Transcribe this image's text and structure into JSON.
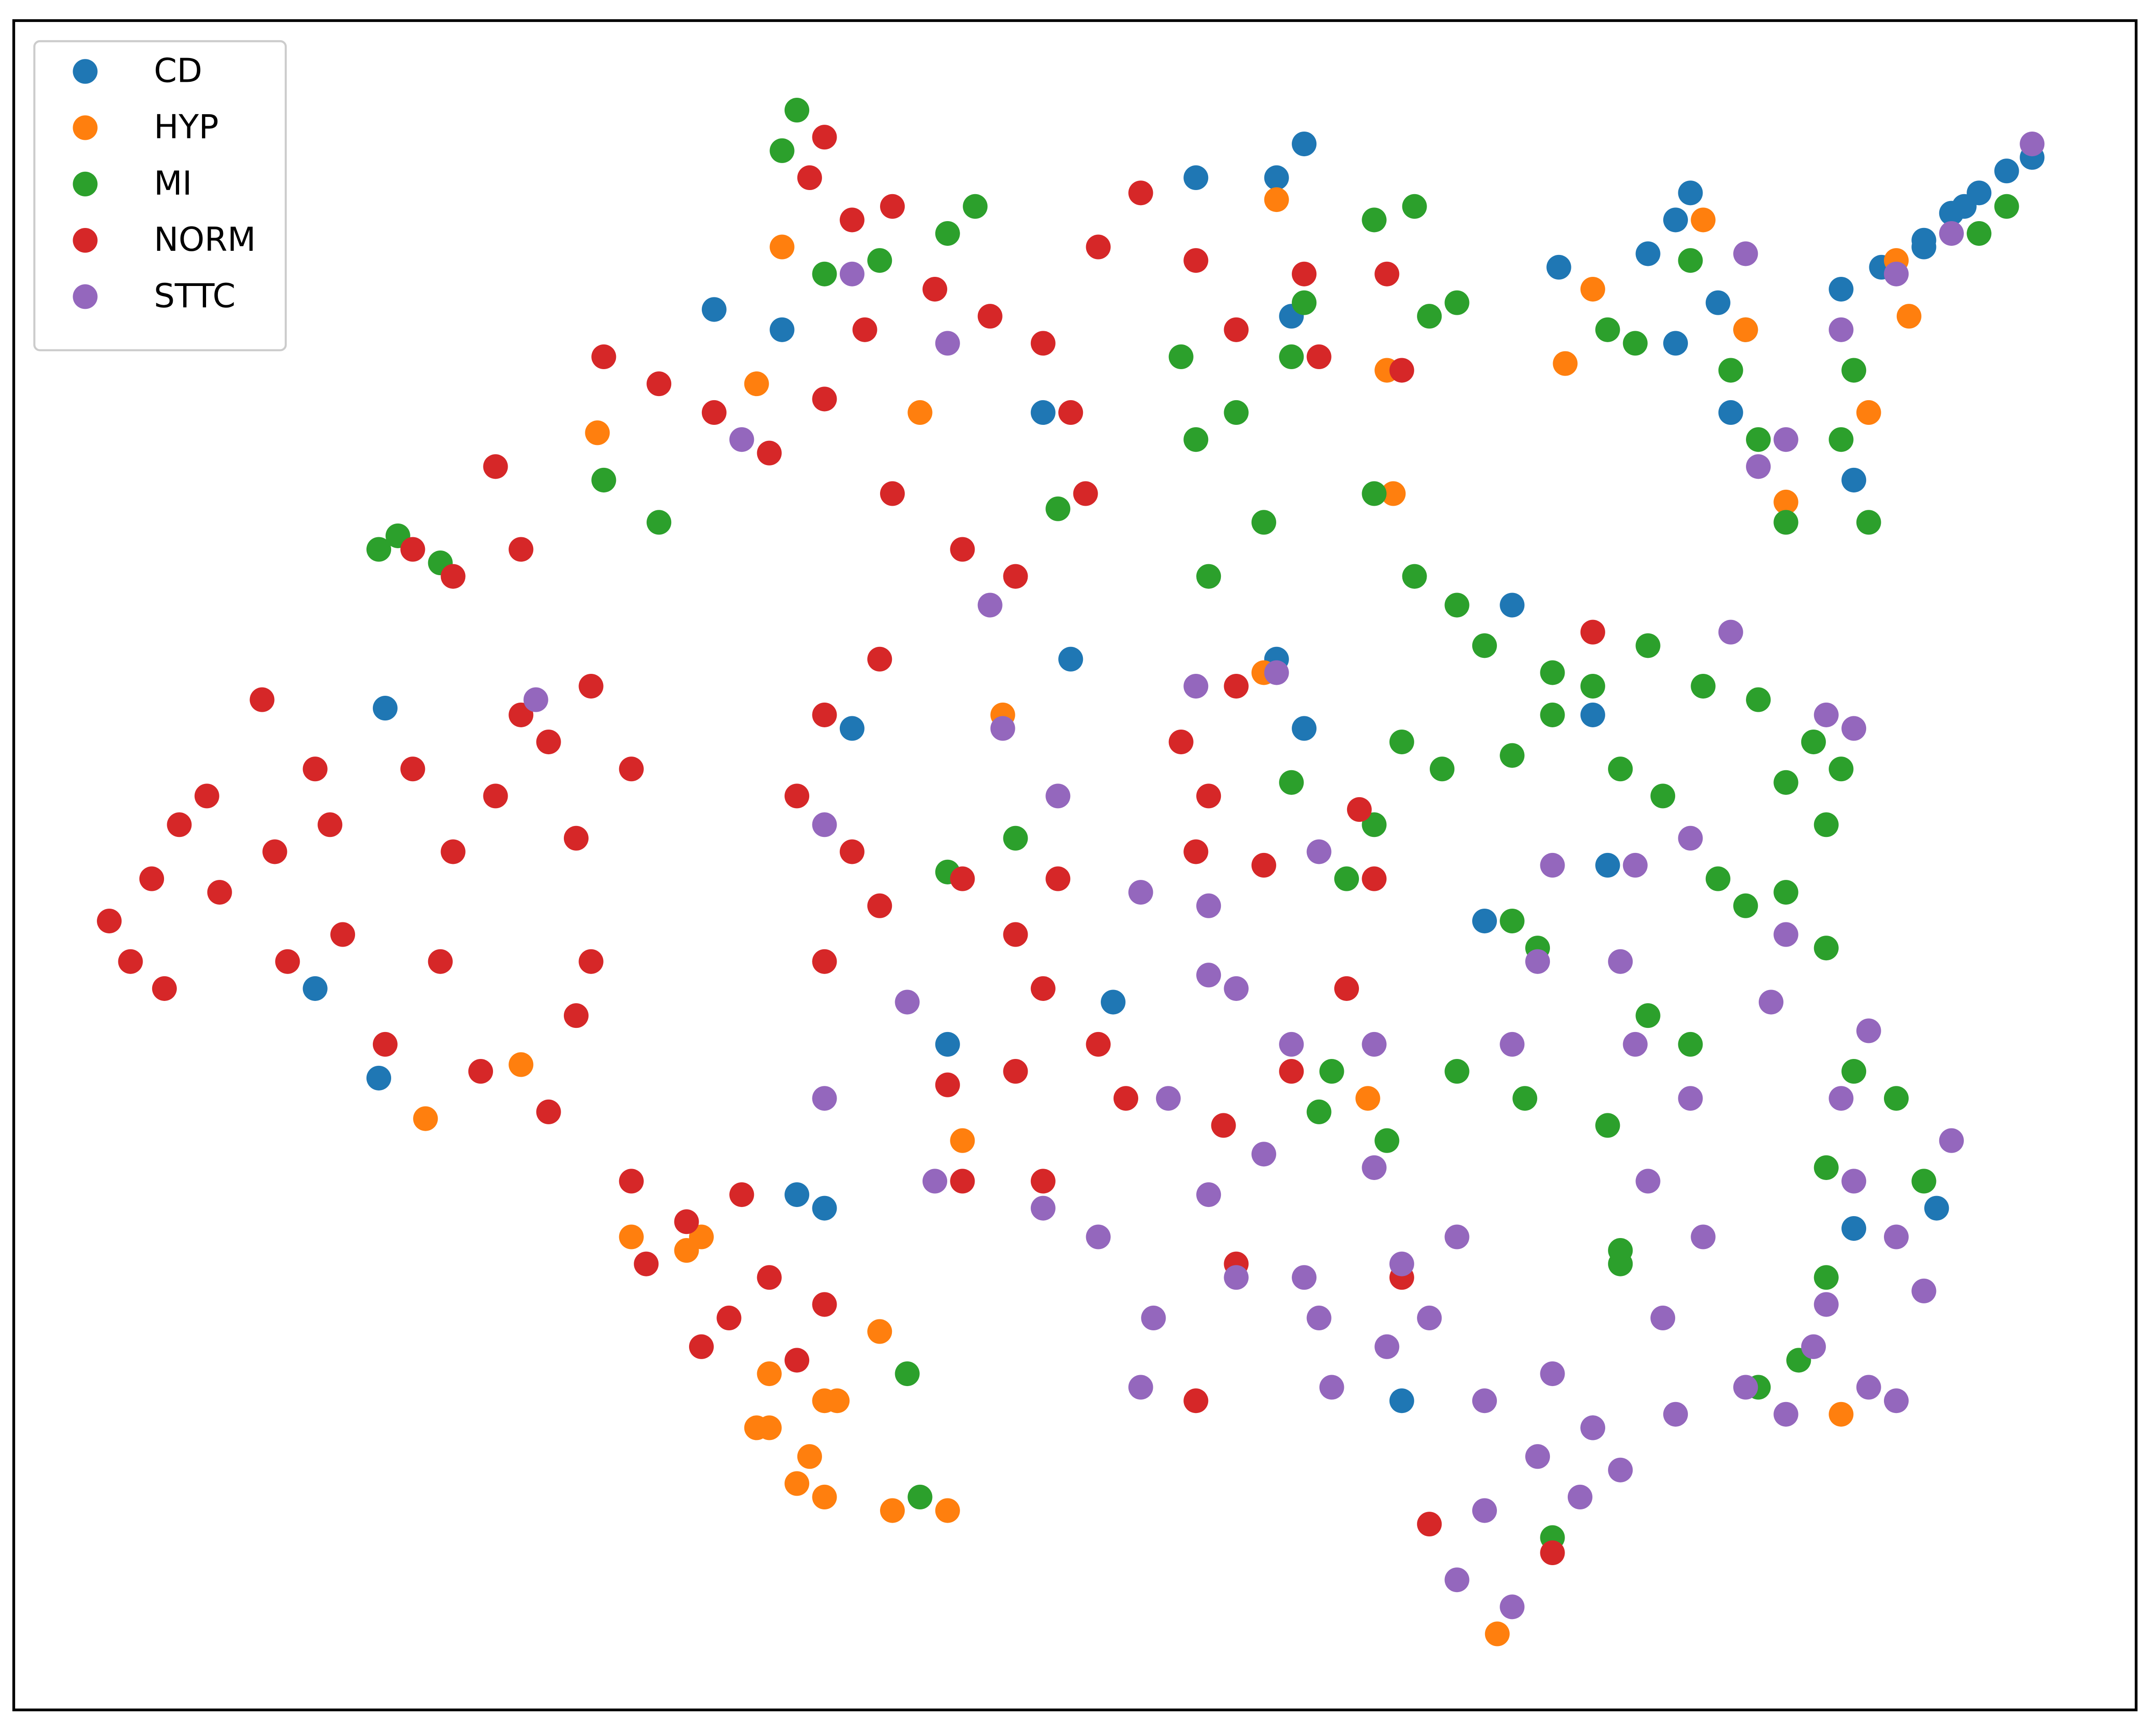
{
  "chart_data": {
    "type": "scatter",
    "legend": "upper left",
    "xlim": [
      0,
      100
    ],
    "ylim": [
      0,
      100
    ],
    "series": [
      {
        "name": "CD",
        "color": "#1f77b4",
        "x": [
          86.1,
          88.0,
          90.0,
          91.3,
          92.6,
          93.9,
          95.1,
          90.0,
          91.9,
          79.0,
          78.3,
          77.0,
          72.8,
          80.3,
          80.9,
          78.3,
          86.7,
          60.8,
          59.5,
          55.7,
          60.2,
          48.5,
          39.5,
          36.2,
          33.0,
          17.2,
          14.2,
          17.5,
          36.9,
          38.2,
          44.0,
          51.8,
          49.8,
          59.5,
          60.8,
          69.3,
          70.6,
          74.4,
          75.1,
          86.7,
          90.6,
          74.4,
          65.4,
          81.6
        ],
        "y": [
          84.1,
          85.4,
          87.0,
          88.6,
          89.8,
          91.1,
          91.9,
          86.6,
          89.0,
          89.8,
          88.2,
          86.2,
          85.4,
          83.3,
          76.8,
          80.9,
          72.8,
          92.7,
          90.7,
          90.7,
          82.5,
          76.8,
          58.1,
          81.7,
          82.9,
          37.4,
          42.7,
          59.3,
          30.5,
          29.7,
          39.4,
          41.9,
          62.2,
          62.2,
          58.1,
          46.7,
          65.4,
          58.9,
          50.0,
          28.5,
          29.7,
          16.7,
          18.3,
          81.7
        ]
      },
      {
        "name": "HYP",
        "color": "#ff7f0e",
        "x": [
          35.6,
          37.5,
          38.2,
          41.4,
          44.0,
          35.6,
          31.7,
          32.4,
          29.1,
          35.0,
          38.2,
          36.9,
          40.8,
          38.8,
          73.1,
          74.4,
          88.7,
          87.4,
          89.3,
          79.6,
          81.6,
          83.5,
          86.1,
          69.9,
          59.5,
          64.7,
          65.0,
          42.7,
          36.2,
          35.0,
          27.5,
          19.4,
          23.9,
          44.7,
          46.6,
          58.9,
          63.8
        ],
        "y": [
          16.7,
          15.0,
          12.6,
          11.8,
          11.8,
          19.9,
          27.2,
          28.0,
          28.0,
          16.7,
          18.3,
          13.4,
          22.4,
          18.3,
          79.7,
          84.1,
          85.8,
          76.8,
          82.5,
          88.2,
          81.7,
          71.5,
          17.5,
          4.5,
          89.4,
          79.3,
          72.0,
          76.8,
          86.6,
          78.5,
          75.6,
          35.0,
          38.2,
          33.7,
          58.9,
          61.4,
          36.2
        ]
      },
      {
        "name": "MI",
        "color": "#2ca02c",
        "x": [
          66.0,
          68.0,
          69.3,
          72.5,
          74.4,
          77.0,
          79.6,
          82.2,
          84.8,
          86.1,
          85.4,
          83.5,
          65.4,
          67.3,
          70.6,
          72.5,
          64.1,
          62.8,
          60.2,
          75.7,
          77.7,
          80.3,
          81.6,
          83.5,
          85.4,
          70.6,
          71.8,
          68.0,
          77.0,
          79.0,
          75.1,
          71.2,
          62.1,
          61.5,
          64.7,
          82.2,
          75.7,
          75.1,
          76.4,
          79.0,
          80.9,
          82.2,
          86.1,
          86.7,
          87.4,
          83.5,
          92.6,
          93.9,
          64.1,
          66.0,
          66.7,
          68.0,
          64.1,
          58.9,
          55.0,
          55.7,
          57.6,
          60.2,
          60.8,
          45.3,
          44.0,
          38.2,
          40.8,
          36.9,
          36.2,
          18.1,
          17.2,
          20.1,
          30.4,
          27.8,
          47.2,
          44.0,
          49.2,
          56.3,
          42.1,
          42.7,
          72.5,
          86.7,
          88.7,
          90.0,
          75.7,
          84.1,
          85.4,
          85.4
        ],
        "y": [
          67.1,
          65.4,
          63.0,
          61.4,
          60.6,
          63.0,
          60.6,
          59.8,
          57.3,
          55.7,
          52.4,
          54.9,
          57.3,
          55.7,
          56.5,
          58.9,
          52.4,
          49.2,
          54.9,
          55.7,
          54.1,
          49.2,
          47.6,
          48.4,
          45.1,
          46.7,
          45.1,
          37.8,
          41.1,
          39.4,
          34.6,
          36.2,
          37.8,
          35.4,
          33.7,
          19.1,
          26.4,
          81.7,
          80.9,
          85.8,
          79.3,
          75.2,
          75.2,
          79.3,
          70.3,
          70.3,
          87.4,
          89.0,
          88.2,
          89.0,
          82.5,
          83.3,
          72.0,
          70.3,
          80.1,
          75.2,
          76.8,
          80.1,
          83.3,
          89.0,
          87.4,
          85.0,
          85.8,
          94.7,
          92.3,
          69.5,
          68.7,
          67.9,
          70.3,
          72.8,
          51.6,
          49.6,
          71.1,
          67.1,
          19.9,
          12.6,
          10.2,
          37.8,
          36.2,
          31.3,
          27.2,
          20.7,
          25.6,
          32.1
        ]
      },
      {
        "name": "NORM",
        "color": "#d62728",
        "x": [
          4.5,
          5.5,
          6.5,
          7.8,
          9.1,
          7.1,
          9.7,
          12.3,
          14.2,
          12.9,
          15.5,
          14.9,
          11.7,
          18.8,
          20.7,
          22.7,
          25.2,
          27.2,
          29.1,
          23.9,
          26.5,
          20.1,
          17.5,
          22.0,
          26.5,
          27.2,
          25.2,
          29.1,
          29.8,
          31.7,
          34.3,
          35.6,
          33.7,
          38.2,
          36.9,
          32.4,
          38.2,
          40.8,
          39.5,
          36.9,
          38.2,
          40.8,
          44.7,
          47.2,
          49.2,
          48.5,
          51.1,
          47.2,
          48.5,
          44.7,
          44.0,
          52.4,
          20.7,
          23.9,
          22.7,
          18.8,
          27.8,
          30.4,
          33.0,
          35.6,
          38.2,
          40.1,
          43.4,
          46.0,
          41.4,
          44.7,
          47.2,
          38.2,
          37.5,
          39.5,
          41.4,
          48.5,
          49.8,
          50.5,
          51.1,
          53.1,
          55.7,
          57.6,
          60.8,
          61.5,
          65.4,
          64.7,
          55.0,
          56.3,
          57.6,
          55.7,
          58.9,
          63.4,
          64.1,
          60.2,
          57.0,
          57.6,
          65.4,
          55.7,
          66.7,
          72.5,
          74.4,
          62.8
        ],
        "y": [
          46.7,
          44.3,
          49.2,
          52.4,
          54.1,
          42.7,
          48.4,
          50.8,
          55.7,
          44.3,
          45.9,
          52.4,
          59.8,
          55.7,
          50.8,
          54.1,
          57.3,
          60.6,
          55.7,
          58.9,
          51.6,
          44.3,
          39.4,
          37.8,
          41.1,
          44.3,
          35.4,
          31.3,
          26.4,
          28.9,
          30.5,
          25.6,
          23.2,
          24.0,
          20.7,
          21.5,
          44.3,
          47.6,
          50.8,
          54.1,
          58.9,
          62.2,
          49.2,
          45.9,
          49.2,
          42.7,
          39.4,
          37.8,
          31.3,
          31.3,
          37.0,
          36.2,
          67.1,
          68.7,
          73.6,
          68.7,
          80.1,
          78.5,
          76.8,
          74.4,
          77.6,
          81.7,
          84.1,
          82.5,
          72.0,
          68.7,
          67.1,
          93.1,
          90.7,
          88.2,
          89.0,
          80.9,
          76.8,
          72.0,
          86.6,
          89.8,
          85.8,
          81.7,
          85.0,
          80.1,
          79.3,
          85.0,
          57.3,
          54.1,
          60.6,
          50.8,
          50.0,
          53.3,
          49.2,
          37.8,
          34.6,
          26.4,
          25.6,
          18.3,
          11.0,
          9.3,
          63.8,
          42.7
        ]
      },
      {
        "name": "STTC",
        "color": "#9467bd",
        "x": [
          82.2,
          83.5,
          86.1,
          88.7,
          91.3,
          81.6,
          95.1,
          57.6,
          60.2,
          58.9,
          56.3,
          60.8,
          64.1,
          64.1,
          65.4,
          68.0,
          66.7,
          69.3,
          72.5,
          74.4,
          71.8,
          69.3,
          68.0,
          70.6,
          73.8,
          75.7,
          78.3,
          77.7,
          79.6,
          77.0,
          79.0,
          76.4,
          75.7,
          71.8,
          70.6,
          72.5,
          76.4,
          79.0,
          83.5,
          86.1,
          86.7,
          88.7,
          90.0,
          85.4,
          87.4,
          88.7,
          84.8,
          81.6,
          83.5,
          53.1,
          53.7,
          57.6,
          62.1,
          61.5,
          64.7,
          85.4,
          86.7,
          55.7,
          59.5,
          46.0,
          46.6,
          39.5,
          44.0,
          34.3,
          24.6,
          38.2,
          42.1,
          38.2,
          43.4,
          48.5,
          51.1,
          54.4,
          49.2,
          53.1,
          56.3,
          56.3,
          61.5,
          80.9,
          82.8,
          87.4,
          91.3
        ],
        "y": [
          73.6,
          75.2,
          81.7,
          85.0,
          87.4,
          86.2,
          92.7,
          42.7,
          39.4,
          32.9,
          30.5,
          25.6,
          32.1,
          39.4,
          26.4,
          28.0,
          23.2,
          18.3,
          19.9,
          16.7,
          15.0,
          11.8,
          7.7,
          6.1,
          12.6,
          14.2,
          17.5,
          23.2,
          28.0,
          31.3,
          36.2,
          39.4,
          44.3,
          44.3,
          39.4,
          50.0,
          50.0,
          51.6,
          45.9,
          36.2,
          31.3,
          28.0,
          24.8,
          24.0,
          19.1,
          18.3,
          21.5,
          19.1,
          17.5,
          19.1,
          23.2,
          25.6,
          19.1,
          23.2,
          21.5,
          58.9,
          58.1,
          60.6,
          61.4,
          65.4,
          58.1,
          85.0,
          80.9,
          75.2,
          59.8,
          52.4,
          41.9,
          36.2,
          31.3,
          29.7,
          28.0,
          36.2,
          54.1,
          48.4,
          47.6,
          43.5,
          50.8,
          63.8,
          41.9,
          40.2,
          33.7
        ]
      }
    ]
  }
}
